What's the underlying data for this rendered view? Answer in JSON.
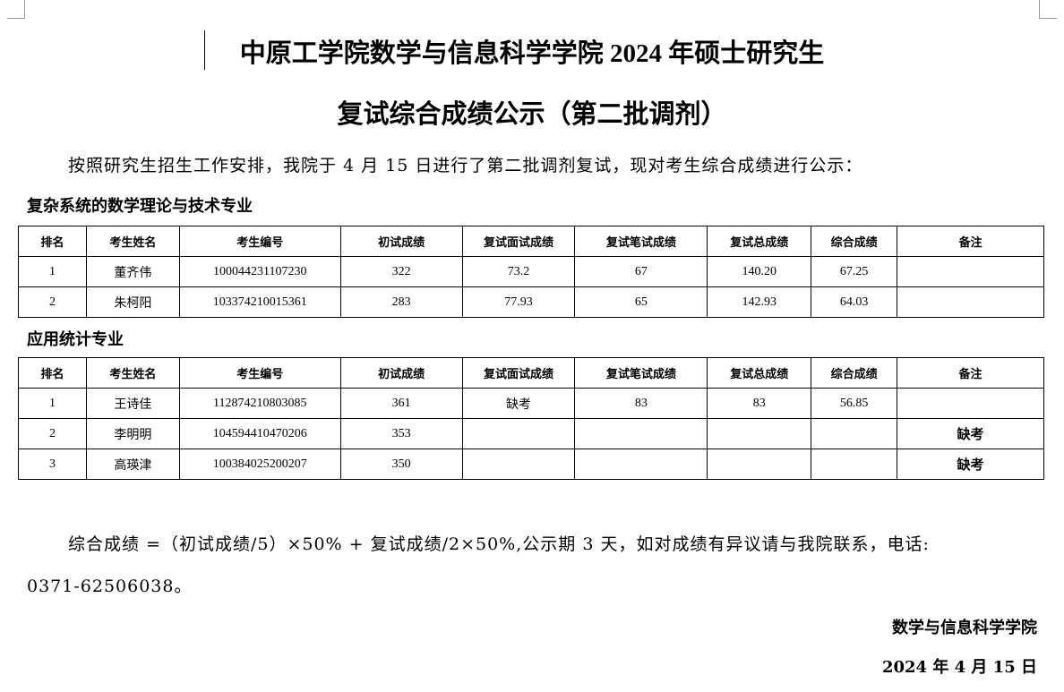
{
  "title_line1": "中原工学院数学与信息科学学院 2024 年硕士研究生",
  "title_line2": "复试综合成绩公示（第二批调剂）",
  "intro": "按照研究生招生工作安排，我院于 4 月 15 日进行了第二批调剂复试，现对考生综合成绩进行公示：",
  "columns": [
    "排名",
    "考生姓名",
    "考生编号",
    "初试成绩",
    "复试面试成绩",
    "复试笔试成绩",
    "复试总成绩",
    "综合成绩",
    "备注"
  ],
  "sections": [
    {
      "heading": "复杂系统的数学理论与技术专业",
      "rows": [
        [
          "1",
          "董齐伟",
          "100044231107230",
          "322",
          "73.2",
          "67",
          "140.20",
          "67.25",
          ""
        ],
        [
          "2",
          "朱柯阳",
          "103374210015361",
          "283",
          "77.93",
          "65",
          "142.93",
          "64.03",
          ""
        ]
      ]
    },
    {
      "heading": "应用统计专业",
      "rows": [
        [
          "1",
          "王诗佳",
          "112874210803085",
          "361",
          "缺考",
          "83",
          "83",
          "56.85",
          ""
        ],
        [
          "2",
          "李明明",
          "104594410470206",
          "353",
          "",
          "",
          "",
          "",
          "缺考"
        ],
        [
          "3",
          "高瑛津",
          "100384025200207",
          "350",
          "",
          "",
          "",
          "",
          "缺考"
        ]
      ]
    }
  ],
  "footer_formula": "综合成绩 =（初试成绩/5）×50% + 复试成绩/2×50%,公示期 3 天，如对成绩有异议请与我院联系，电话:",
  "footer_phone": "0371-62506038。",
  "signature": "数学与信息科学学院",
  "date": "2024 年 4 月 15 日"
}
